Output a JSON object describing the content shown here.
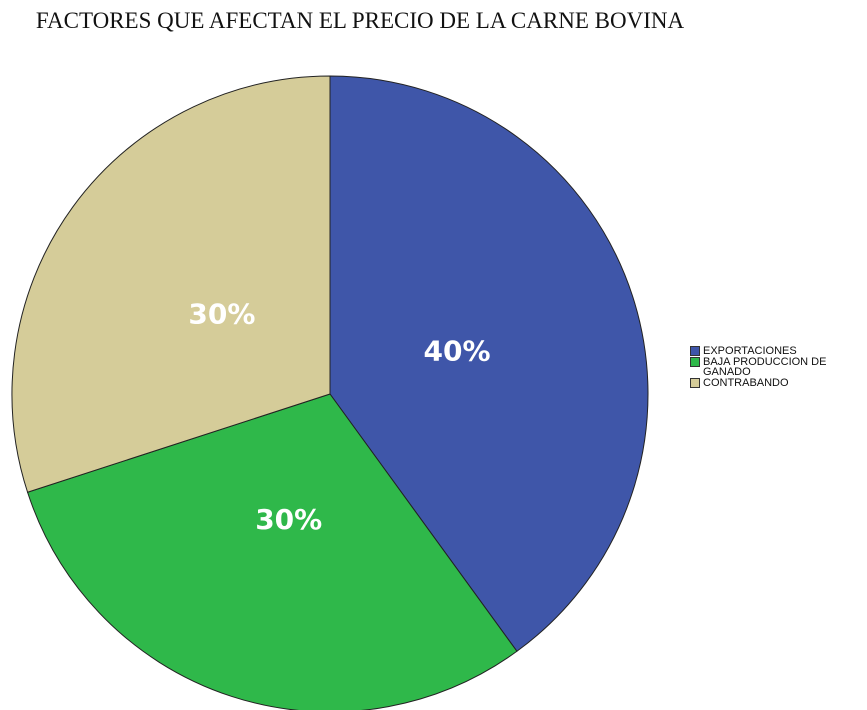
{
  "chart_data": {
    "type": "pie",
    "title": "FACTORES QUE AFECTAN EL PRECIO DE LA CARNE BOVINA",
    "categories": [
      "EXPORTACIONES",
      "BAJA PRODUCCION DE GANADO",
      "CONTRABANDO"
    ],
    "values": [
      40,
      30,
      30
    ],
    "value_labels": [
      "40%",
      "30%",
      "30%"
    ],
    "colors": [
      "#3f56a9",
      "#2fb84a",
      "#d5cc99"
    ],
    "legend": "right"
  }
}
